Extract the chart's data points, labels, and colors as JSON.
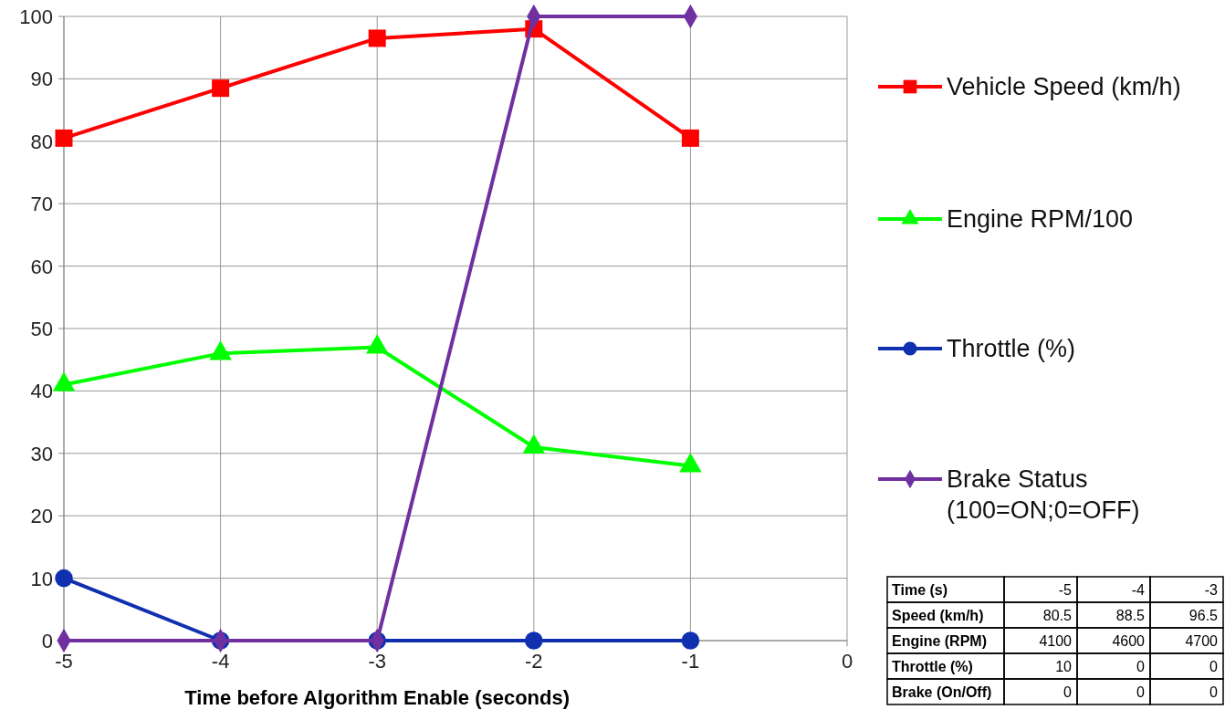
{
  "chart_data": {
    "type": "line",
    "xlabel": "Time before Algorithm Enable  (seconds)",
    "x": [
      -5,
      -4,
      -3,
      -2,
      -1
    ],
    "xlim": [
      -5,
      0
    ],
    "xticks": [
      -5,
      -4,
      -3,
      -2,
      -1,
      0
    ],
    "ylim": [
      0,
      100
    ],
    "yticks": [
      0,
      10,
      20,
      30,
      40,
      50,
      60,
      70,
      80,
      90,
      100
    ],
    "grid": true,
    "legend": "right",
    "line_style": "solid",
    "series": [
      {
        "name": "Vehicle Speed (km/h)",
        "color": "#ff0000",
        "marker": "square",
        "values": [
          80.5,
          88.5,
          96.5,
          98,
          80.5
        ]
      },
      {
        "name": "Engine RPM/100",
        "color": "#00ff00",
        "marker": "triangle",
        "values": [
          41,
          46,
          47,
          31,
          28
        ]
      },
      {
        "name": "Throttle (%)",
        "color": "#1030b0",
        "marker": "circle",
        "values": [
          10,
          0,
          0,
          0,
          0
        ]
      },
      {
        "name": "Brake Status (100=ON;0=OFF)",
        "color": "#7030a0",
        "marker": "diamond",
        "values": [
          0,
          0,
          0,
          100,
          100
        ]
      }
    ],
    "annotations": [
      "Time (s)",
      "-5",
      "-4",
      "-3",
      "Speed (km/h)",
      "80.5",
      "88.5",
      "96.5",
      "Engine (RPM)",
      "4100",
      "4600",
      "4700",
      "Throttle (%)",
      "10",
      "0",
      "0",
      "Brake (On/Off)",
      "0",
      "0",
      "0"
    ]
  }
}
